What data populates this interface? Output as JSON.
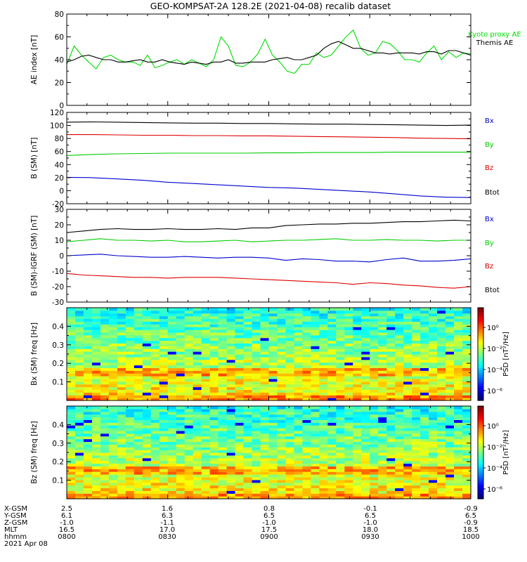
{
  "title": "GEO-KOMPSAT-2A 128.2E (2021-04-08) recalib dataset",
  "chart_data": [
    {
      "type": "line",
      "ylabel": "AE index [nT]",
      "ylim": [
        0,
        80
      ],
      "yticks": [
        "0",
        "20",
        "40",
        "60",
        "80"
      ],
      "series": [
        {
          "name": "Kyoto proxy AE",
          "color": "#00dd00",
          "values": [
            36,
            52,
            44,
            38,
            32,
            42,
            44,
            40,
            38,
            38,
            35,
            44,
            33,
            35,
            38,
            40,
            36,
            40,
            37,
            34,
            40,
            60,
            52,
            35,
            34,
            38,
            45,
            58,
            44,
            38,
            30,
            28,
            36,
            36,
            46,
            42,
            44,
            52,
            60,
            66,
            50,
            44,
            46,
            56,
            54,
            48,
            40,
            40,
            38,
            46,
            52,
            40,
            47,
            42,
            46,
            45
          ]
        },
        {
          "name": "Themis AE",
          "color": "#000000",
          "values": [
            38,
            40,
            43,
            44,
            42,
            40,
            40,
            38,
            38,
            39,
            40,
            38,
            38,
            40,
            38,
            37,
            36,
            38,
            37,
            36,
            38,
            38,
            40,
            37,
            37,
            38,
            38,
            38,
            40,
            41,
            42,
            40,
            40,
            42,
            44,
            50,
            54,
            56,
            53,
            50,
            50,
            48,
            46,
            46,
            45,
            46,
            46,
            46,
            45,
            47,
            47,
            45,
            48,
            48,
            46,
            44
          ]
        }
      ]
    },
    {
      "type": "line",
      "ylabel": "B (SM) [nT]",
      "ylim": [
        -20,
        120
      ],
      "yticks": [
        "-20",
        "0",
        "20",
        "40",
        "60",
        "80",
        "100",
        "120"
      ],
      "series": [
        {
          "name": "Bx",
          "color": "#0000cc",
          "values": [
            20.5,
            20,
            18,
            16,
            13,
            11,
            9,
            7,
            5,
            4,
            2,
            0,
            -2,
            -5,
            -8,
            -10,
            -10.5
          ]
        },
        {
          "name": "By",
          "color": "#00cc00",
          "values": [
            54,
            55.5,
            56.5,
            57,
            57.5,
            57.5,
            57.5,
            57.5,
            58,
            58,
            58.5,
            58.5,
            58.5,
            59,
            59,
            59,
            59
          ]
        },
        {
          "name": "Bz",
          "color": "#dd0000",
          "values": [
            86,
            86,
            85.5,
            85,
            85,
            84.5,
            84.5,
            84,
            84,
            83.5,
            83,
            82.5,
            82,
            81.5,
            80.5,
            80,
            79.5
          ]
        },
        {
          "name": "Btot",
          "color": "#000000",
          "values": [
            105,
            105.5,
            105,
            104.5,
            104,
            103.5,
            103.5,
            103,
            103,
            102.5,
            102,
            102,
            101.5,
            101,
            100.5,
            100,
            100.5
          ]
        }
      ]
    },
    {
      "type": "line",
      "ylabel": "B (SM)-IGRF (SM) [nT]",
      "ylim": [
        -30,
        30
      ],
      "yticks": [
        "-30",
        "-20",
        "-10",
        "0",
        "10",
        "20",
        "30"
      ],
      "series": [
        {
          "name": "Bx",
          "color": "#0000cc",
          "values": [
            0,
            0.5,
            1,
            0,
            -0.5,
            -1,
            -1,
            -0.5,
            -1,
            -1.5,
            -1,
            -1,
            -1.5,
            -3,
            -2,
            -2.5,
            -3.5,
            -3.5,
            -4,
            -2.5,
            -1.5,
            -3.5,
            -3.5,
            -3,
            -2
          ]
        },
        {
          "name": "By",
          "color": "#00cc00",
          "values": [
            9,
            10,
            11,
            10,
            10,
            9.5,
            10,
            9,
            9,
            9.5,
            10,
            9,
            9.5,
            10,
            10,
            10.5,
            11,
            10,
            10,
            10.5,
            10,
            10,
            9.5,
            10,
            10
          ]
        },
        {
          "name": "Bz",
          "color": "#dd0000",
          "values": [
            -11.5,
            -12.5,
            -13,
            -13.5,
            -14,
            -14,
            -14.5,
            -14,
            -14,
            -14,
            -14.5,
            -15,
            -15.5,
            -16,
            -16.5,
            -17,
            -17.5,
            -18.5,
            -17.5,
            -18,
            -19,
            -19.5,
            -20.5,
            -21,
            -20
          ]
        },
        {
          "name": "Btot",
          "color": "#000000",
          "values": [
            15,
            16,
            17,
            17.5,
            17,
            17,
            17.5,
            17,
            17,
            17.5,
            17,
            18,
            18,
            19.5,
            20,
            20.5,
            20.5,
            21,
            21,
            21.5,
            22,
            22,
            22.5,
            23,
            22.5
          ]
        }
      ]
    },
    {
      "type": "heatmap",
      "ylabel": "Bx (SM) freq [Hz]",
      "ylim": [
        0,
        0.5
      ],
      "yticks": [
        "0.1",
        "0.2",
        "0.3",
        "0.4"
      ],
      "colorbar": {
        "label": "PSD [nT²/Hz]",
        "ticks": [
          "10⁰",
          "10⁻²",
          "10⁻⁴",
          "10⁻⁶"
        ]
      }
    },
    {
      "type": "heatmap",
      "ylabel": "Bz (SM) freq [Hz]",
      "ylim": [
        0,
        0.5
      ],
      "yticks": [
        "0.1",
        "0.2",
        "0.3",
        "0.4"
      ],
      "colorbar": {
        "label": "PSD [nT²/Hz]",
        "ticks": [
          "10⁰",
          "10⁻²",
          "10⁻⁴",
          "10⁻⁶"
        ]
      }
    }
  ],
  "ephemeris": {
    "rows": [
      {
        "label": "X-GSM",
        "values": [
          "2.5",
          "1.6",
          "0.8",
          "-0.1",
          "-0.9"
        ]
      },
      {
        "label": "Y-GSM",
        "values": [
          "6.1",
          "6.3",
          "6.5",
          "6.5",
          "6.5"
        ]
      },
      {
        "label": "Z-GSM",
        "values": [
          "-1.0",
          "-1.1",
          "-1.0",
          "-1.0",
          "-0.9"
        ]
      },
      {
        "label": "MLT",
        "values": [
          "16.5",
          "17.0",
          "17.5",
          "18.0",
          "18.5"
        ]
      },
      {
        "label": "hhmm",
        "values": [
          "0800",
          "0830",
          "0900",
          "0930",
          "1000"
        ]
      }
    ],
    "date": "2021 Apr 08"
  }
}
